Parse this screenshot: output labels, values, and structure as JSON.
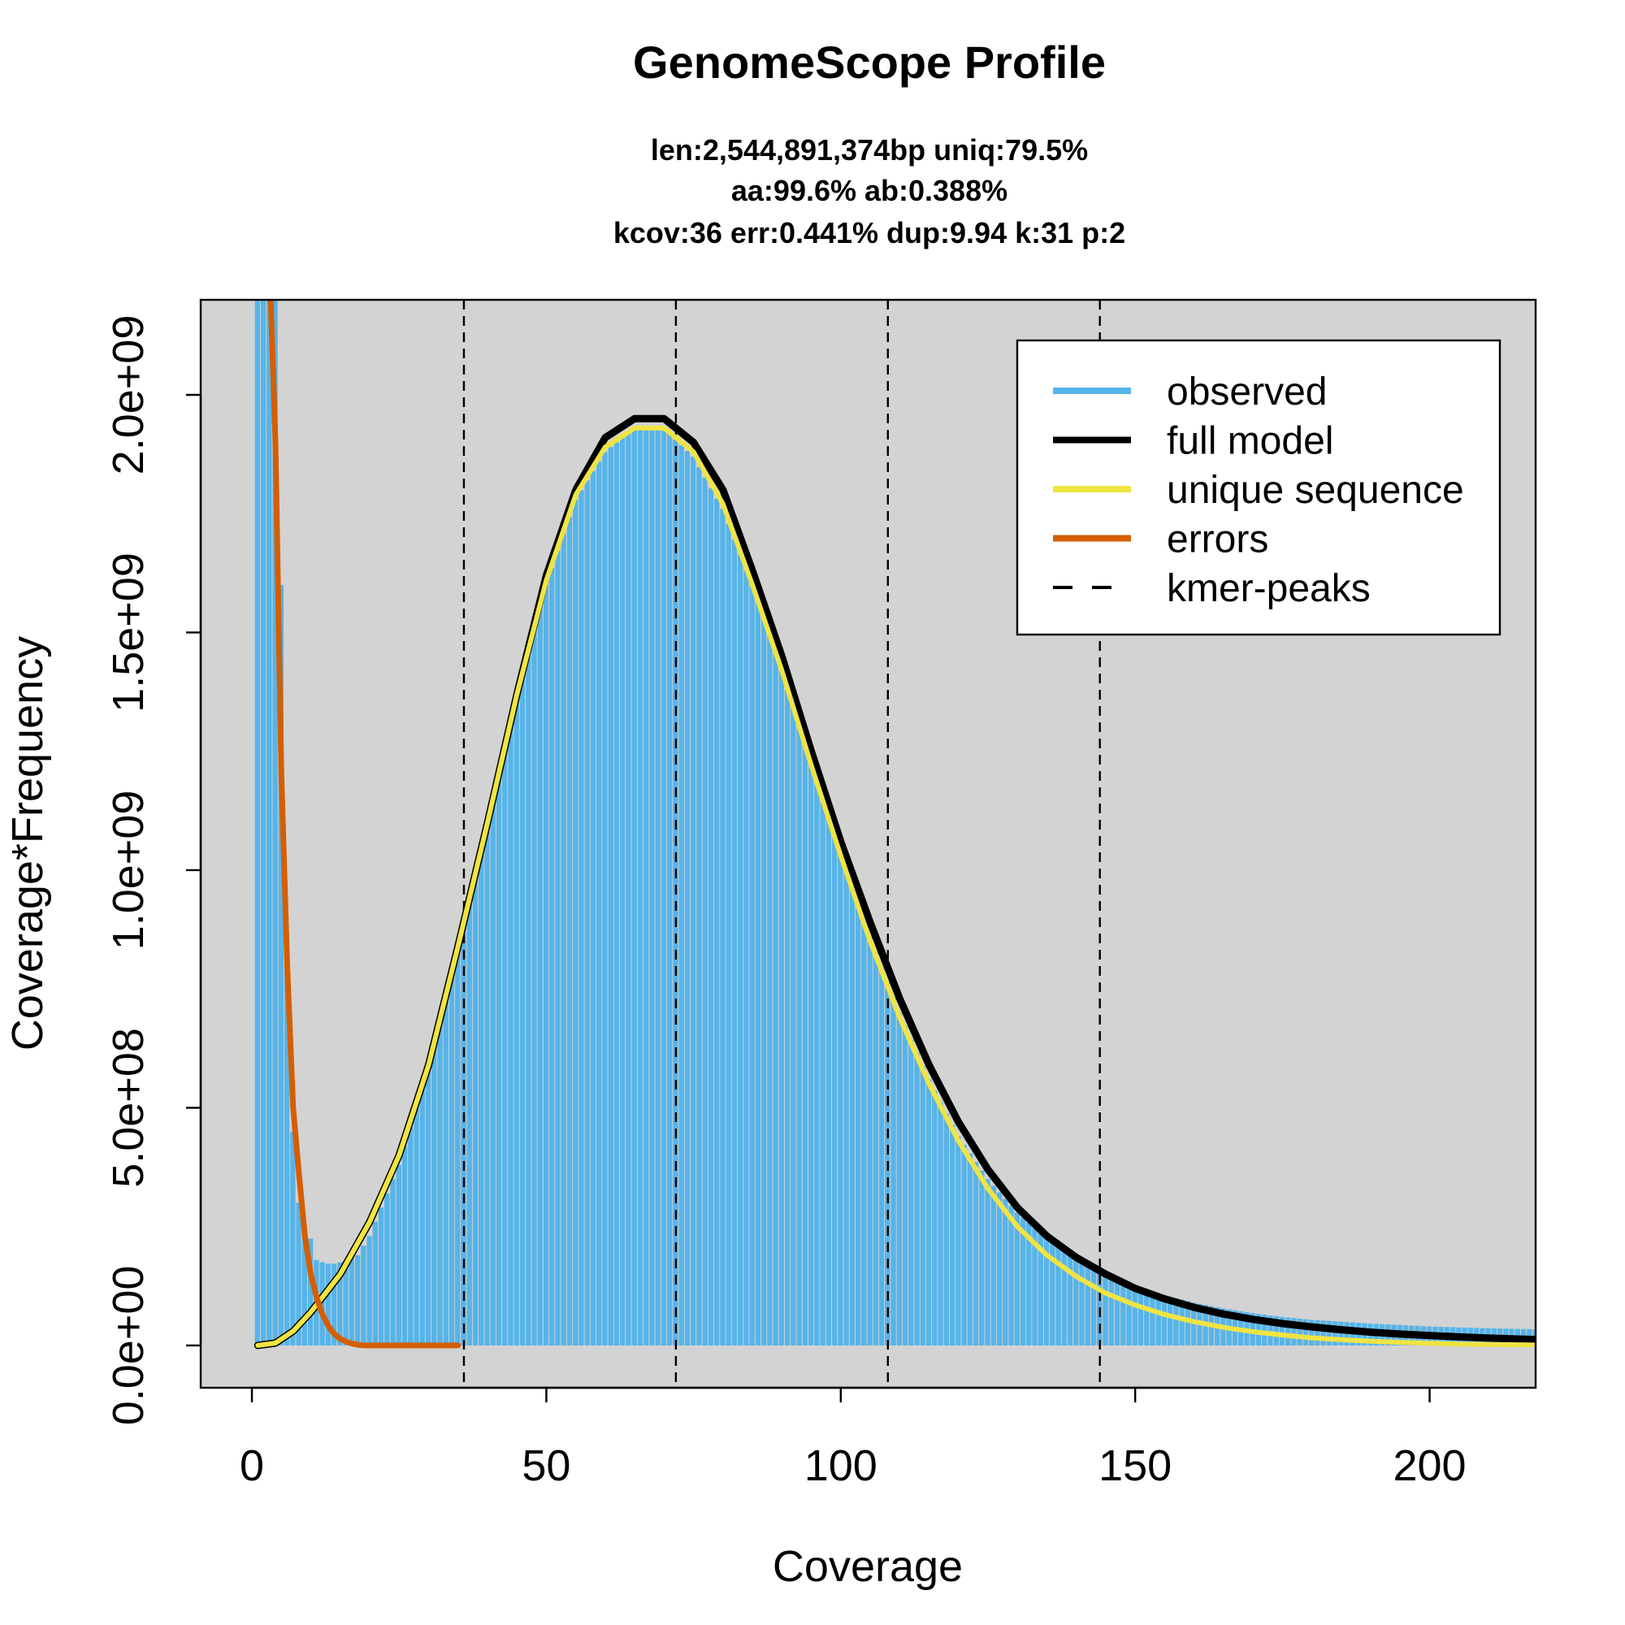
{
  "chart_data": {
    "type": "bar",
    "title": "GenomeScope Profile",
    "subtitle_lines": [
      "len:2,544,891,374bp uniq:79.5%",
      "aa:99.6% ab:0.388%",
      "kcov:36 err:0.441%  dup:9.94  k:31 p:2"
    ],
    "xlabel": "Coverage",
    "ylabel": "Coverage*Frequency",
    "xlim": [
      -8.7,
      218
    ],
    "ylim": [
      -89000000.0,
      2200000000.0
    ],
    "xticks": [
      0,
      50,
      100,
      150,
      200
    ],
    "xtick_labels": [
      "0",
      "50",
      "100",
      "150",
      "200"
    ],
    "yticks": [
      0,
      500000000,
      1000000000,
      1500000000,
      2000000000
    ],
    "ytick_labels": [
      "0.0e+00",
      "5.0e+08",
      "1.0e+09",
      "1.5e+09",
      "2.0e+09"
    ],
    "background_color": "#d3d3d3",
    "grid": false,
    "legend_position": "top-right",
    "legend": [
      {
        "label": "observed",
        "color": "#56b4e9",
        "style": "solid"
      },
      {
        "label": "full model",
        "color": "#000000",
        "style": "solid"
      },
      {
        "label": "unique sequence",
        "color": "#f0e442",
        "style": "solid"
      },
      {
        "label": "errors",
        "color": "#d55e00",
        "style": "solid"
      },
      {
        "label": "kmer-peaks",
        "color": "#000000",
        "style": "dashed"
      }
    ],
    "kmer_peaks": [
      36,
      72,
      108,
      144
    ],
    "observed": {
      "name": "observed",
      "color": "#56b4e9",
      "points": [
        [
          1,
          2200000000.0
        ],
        [
          2,
          2200000000.0
        ],
        [
          3,
          2200000000.0
        ],
        [
          4,
          2200000000.0
        ],
        [
          5,
          1600000000.0
        ],
        [
          6,
          800000000.0
        ],
        [
          7,
          450000000.0
        ],
        [
          8,
          300000000.0
        ],
        [
          9,
          250000000.0
        ],
        [
          10,
          225000000.0
        ],
        [
          11,
          180000000.0
        ],
        [
          12,
          175000000.0
        ],
        [
          13,
          172000000.0
        ],
        [
          14,
          172000000.0
        ],
        [
          15,
          175000000.0
        ],
        [
          16,
          178000000.0
        ],
        [
          18,
          190000000.0
        ],
        [
          20,
          230000000.0
        ],
        [
          25,
          380000000.0
        ],
        [
          30,
          580000000.0
        ],
        [
          35,
          840000000.0
        ],
        [
          40,
          1100000000.0
        ],
        [
          45,
          1380000000.0
        ],
        [
          50,
          1600000000.0
        ],
        [
          55,
          1780000000.0
        ],
        [
          60,
          1880000000.0
        ],
        [
          65,
          1930000000.0
        ],
        [
          70,
          1930000000.0
        ],
        [
          75,
          1870000000.0
        ],
        [
          80,
          1760000000.0
        ],
        [
          85,
          1600000000.0
        ],
        [
          90,
          1420000000.0
        ],
        [
          95,
          1230000000.0
        ],
        [
          100,
          1040000000.0
        ],
        [
          105,
          860000000.0
        ],
        [
          110,
          700000000.0
        ],
        [
          115,
          560000000.0
        ],
        [
          120,
          440000000.0
        ],
        [
          125,
          350000000.0
        ],
        [
          130,
          280000000.0
        ],
        [
          135,
          225000000.0
        ],
        [
          140,
          185000000.0
        ],
        [
          145,
          150000000.0
        ],
        [
          150,
          125000000.0
        ],
        [
          155,
          105000000.0
        ],
        [
          160,
          90000000.0
        ],
        [
          165,
          78000000.0
        ],
        [
          170,
          68000000.0
        ],
        [
          175,
          60000000.0
        ],
        [
          180,
          54000000.0
        ],
        [
          185,
          50000000.0
        ],
        [
          190,
          46000000.0
        ],
        [
          195,
          43000000.0
        ],
        [
          200,
          40000000.0
        ],
        [
          205,
          38000000.0
        ],
        [
          210,
          36000000.0
        ],
        [
          215,
          35000000.0
        ],
        [
          218,
          34000000.0
        ]
      ]
    },
    "full_model": {
      "name": "full model",
      "color": "#000000",
      "points": [
        [
          1,
          0
        ],
        [
          4,
          5000000.0
        ],
        [
          7,
          30000000.0
        ],
        [
          10,
          70000000.0
        ],
        [
          15,
          150000000.0
        ],
        [
          20,
          260000000.0
        ],
        [
          25,
          400000000.0
        ],
        [
          30,
          590000000.0
        ],
        [
          35,
          840000000.0
        ],
        [
          40,
          1100000000.0
        ],
        [
          45,
          1370000000.0
        ],
        [
          50,
          1620000000.0
        ],
        [
          55,
          1800000000.0
        ],
        [
          60,
          1910000000.0
        ],
        [
          65,
          1950000000.0
        ],
        [
          70,
          1950000000.0
        ],
        [
          75,
          1900000000.0
        ],
        [
          80,
          1800000000.0
        ],
        [
          85,
          1630000000.0
        ],
        [
          90,
          1450000000.0
        ],
        [
          95,
          1250000000.0
        ],
        [
          100,
          1060000000.0
        ],
        [
          105,
          890000000.0
        ],
        [
          110,
          730000000.0
        ],
        [
          115,
          590000000.0
        ],
        [
          120,
          470000000.0
        ],
        [
          125,
          370000000.0
        ],
        [
          130,
          290000000.0
        ],
        [
          135,
          230000000.0
        ],
        [
          140,
          185000000.0
        ],
        [
          145,
          150000000.0
        ],
        [
          150,
          120000000.0
        ],
        [
          155,
          98000000.0
        ],
        [
          160,
          80000000.0
        ],
        [
          165,
          66000000.0
        ],
        [
          170,
          55000000.0
        ],
        [
          175,
          46000000.0
        ],
        [
          180,
          39000000.0
        ],
        [
          185,
          33000000.0
        ],
        [
          190,
          28000000.0
        ],
        [
          195,
          24000000.0
        ],
        [
          200,
          21000000.0
        ],
        [
          205,
          18000000.0
        ],
        [
          210,
          15500000.0
        ],
        [
          215,
          13500000.0
        ],
        [
          218,
          12500000.0
        ]
      ]
    },
    "unique_sequence": {
      "name": "unique sequence",
      "color": "#f0e442",
      "points": [
        [
          1,
          0
        ],
        [
          4,
          5000000.0
        ],
        [
          7,
          30000000.0
        ],
        [
          10,
          70000000.0
        ],
        [
          15,
          150000000.0
        ],
        [
          20,
          260000000.0
        ],
        [
          25,
          400000000.0
        ],
        [
          30,
          590000000.0
        ],
        [
          35,
          840000000.0
        ],
        [
          40,
          1100000000.0
        ],
        [
          45,
          1370000000.0
        ],
        [
          50,
          1610000000.0
        ],
        [
          55,
          1790000000.0
        ],
        [
          60,
          1890000000.0
        ],
        [
          65,
          1930000000.0
        ],
        [
          70,
          1930000000.0
        ],
        [
          75,
          1880000000.0
        ],
        [
          80,
          1770000000.0
        ],
        [
          85,
          1600000000.0
        ],
        [
          90,
          1420000000.0
        ],
        [
          95,
          1220000000.0
        ],
        [
          100,
          1030000000.0
        ],
        [
          105,
          850000000.0
        ],
        [
          110,
          690000000.0
        ],
        [
          115,
          550000000.0
        ],
        [
          120,
          430000000.0
        ],
        [
          125,
          330000000.0
        ],
        [
          130,
          250000000.0
        ],
        [
          135,
          190000000.0
        ],
        [
          140,
          145000000.0
        ],
        [
          145,
          110000000.0
        ],
        [
          150,
          85000000.0
        ],
        [
          155,
          65000000.0
        ],
        [
          160,
          50000000.0
        ],
        [
          165,
          38000000.0
        ],
        [
          170,
          29000000.0
        ],
        [
          175,
          22000000.0
        ],
        [
          180,
          16000000.0
        ],
        [
          185,
          12000000.0
        ],
        [
          190,
          9000000.0
        ],
        [
          195,
          6500000.0
        ],
        [
          200,
          4500000.0
        ],
        [
          205,
          3000000.0
        ],
        [
          210,
          2000000.0
        ],
        [
          215,
          1400000.0
        ],
        [
          218,
          1000000.0
        ]
      ]
    },
    "errors": {
      "name": "errors",
      "color": "#d55e00",
      "points": [
        [
          3.2,
          2200000000.0
        ],
        [
          4,
          1900000000.0
        ],
        [
          5,
          1200000000.0
        ],
        [
          6,
          800000000.0
        ],
        [
          7,
          500000000.0
        ],
        [
          8,
          360000000.0
        ],
        [
          9,
          230000000.0
        ],
        [
          10,
          150000000.0
        ],
        [
          11,
          100000000.0
        ],
        [
          12,
          65000000.0
        ],
        [
          13,
          40000000.0
        ],
        [
          14,
          24000000.0
        ],
        [
          15,
          14000000.0
        ],
        [
          16,
          8000000.0
        ],
        [
          17,
          4000000.0
        ],
        [
          18,
          1500000.0
        ],
        [
          19,
          0
        ],
        [
          35,
          0
        ]
      ]
    }
  }
}
